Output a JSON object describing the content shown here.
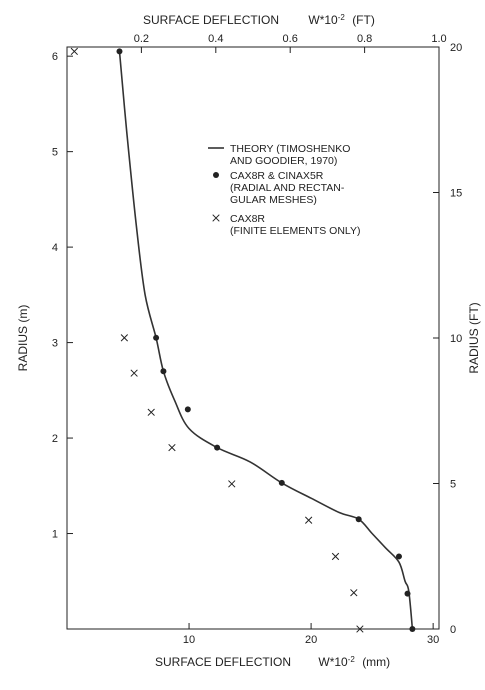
{
  "chart_data": {
    "type": "scatter",
    "xlabel": "SURFACE DEFLECTION",
    "xlabel_symbol": "W*10",
    "xlabel_exp": "-2",
    "xlabel_unit": "(mm)",
    "x2label": "SURFACE DEFLECTION",
    "x2label_symbol": "W*10",
    "x2label_exp": "-2",
    "x2label_unit": "(FT)",
    "ylabel": "RADIUS (m)",
    "y2label": "RADIUS (FT)",
    "xlim": [
      0,
      30.48
    ],
    "ylim": [
      0,
      6.096
    ],
    "x2lim": [
      0,
      1.0
    ],
    "y2lim": [
      0,
      20
    ],
    "x_ticks": [
      10,
      20,
      30
    ],
    "y_ticks": [
      1,
      2,
      3,
      4,
      5,
      6
    ],
    "x2_ticks": [
      0.2,
      0.4,
      0.6,
      0.8,
      1.0
    ],
    "y2_ticks": [
      0,
      5,
      10,
      15,
      20
    ],
    "x_tick_labels": [
      "10",
      "20",
      "30"
    ],
    "y_tick_labels": [
      "1",
      "2",
      "3",
      "4",
      "5",
      "6"
    ],
    "x2_tick_labels": [
      "0.2",
      "0.4",
      "0.6",
      "0.8",
      "1.0"
    ],
    "y2_tick_labels": [
      "0",
      "5",
      "10",
      "15",
      "20"
    ],
    "series": [
      {
        "name": "THEORY (TIMOSHENKO AND GOODIER, 1970)",
        "marker": "line",
        "points": [
          [
            4.3,
            6.05
          ],
          [
            4.9,
            5.2
          ],
          [
            5.7,
            4.2
          ],
          [
            6.4,
            3.5
          ],
          [
            7.3,
            3.05
          ],
          [
            7.9,
            2.7
          ],
          [
            8.8,
            2.4
          ],
          [
            10.0,
            2.1
          ],
          [
            12.3,
            1.9
          ],
          [
            15.0,
            1.75
          ],
          [
            17.6,
            1.53
          ],
          [
            20.0,
            1.37
          ],
          [
            22.3,
            1.22
          ],
          [
            23.9,
            1.15
          ],
          [
            25.0,
            1.0
          ],
          [
            26.1,
            0.85
          ],
          [
            27.2,
            0.7
          ],
          [
            27.7,
            0.5
          ],
          [
            28.0,
            0.4
          ],
          [
            28.3,
            0.0
          ]
        ]
      },
      {
        "name": "CAX8R & CINAX5R (RADIAL AND RECTANGULAR MESHES)",
        "marker": "dot",
        "points": [
          [
            4.3,
            6.05
          ],
          [
            7.3,
            3.05
          ],
          [
            7.9,
            2.7
          ],
          [
            9.9,
            2.3
          ],
          [
            12.3,
            1.9
          ],
          [
            17.6,
            1.53
          ],
          [
            23.9,
            1.15
          ],
          [
            27.2,
            0.76
          ],
          [
            27.9,
            0.37
          ],
          [
            28.3,
            0.0
          ]
        ]
      },
      {
        "name": "CAX8R (FINITE ELEMENTS ONLY)",
        "marker": "x",
        "points": [
          [
            0.6,
            6.05
          ],
          [
            4.7,
            3.05
          ],
          [
            5.5,
            2.68
          ],
          [
            6.9,
            2.27
          ],
          [
            8.6,
            1.9
          ],
          [
            13.5,
            1.52
          ],
          [
            19.8,
            1.14
          ],
          [
            22.0,
            0.76
          ],
          [
            23.5,
            0.38
          ],
          [
            24.0,
            0.0
          ]
        ]
      }
    ],
    "legend": [
      {
        "marker": "line",
        "lines": [
          "THEORY (TIMOSHENKO",
          "AND GOODIER, 1970)"
        ]
      },
      {
        "marker": "dot",
        "lines": [
          "CAX8R & CINAX5R",
          "(RADIAL AND RECTAN-",
          " GULAR MESHES)"
        ]
      },
      {
        "marker": "x",
        "lines": [
          "CAX8R",
          "(FINITE ELEMENTS ONLY)"
        ]
      }
    ],
    "grid": false,
    "legend_position": "upper-right"
  }
}
